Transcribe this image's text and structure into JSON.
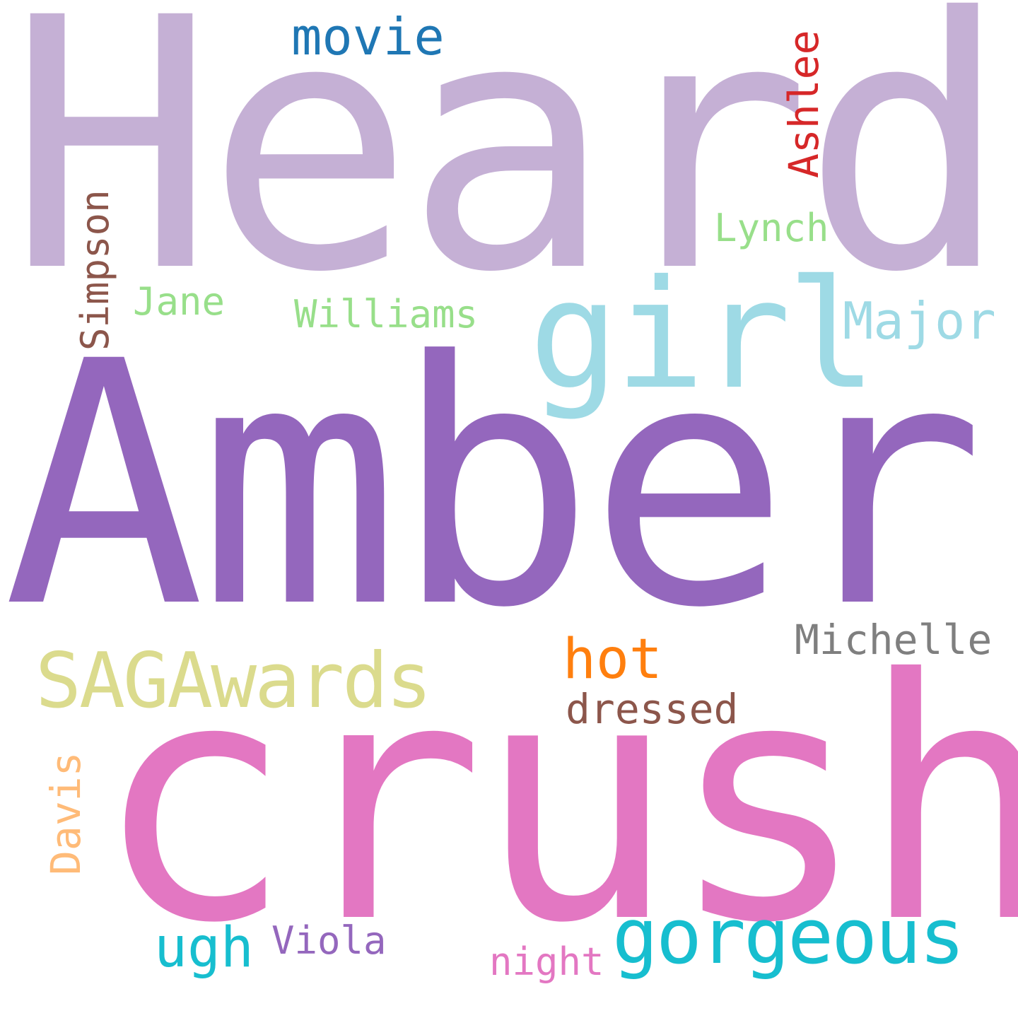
{
  "words": {
    "heard": {
      "text": "Heard",
      "color": "#c5b0d5"
    },
    "amber": {
      "text": "Amber",
      "color": "#9467bd"
    },
    "crush": {
      "text": "crush",
      "color": "#e377c2"
    },
    "girl": {
      "text": "girl",
      "color": "#9edae5"
    },
    "sagawards": {
      "text": "SAGAwards",
      "color": "#dbdb8d"
    },
    "gorgeous": {
      "text": "gorgeous",
      "color": "#17becf"
    },
    "movie": {
      "text": "movie",
      "color": "#1f77b4"
    },
    "hot": {
      "text": "hot",
      "color": "#ff7f0e"
    },
    "major": {
      "text": "Major",
      "color": "#9edae5"
    },
    "ugh": {
      "text": "ugh",
      "color": "#17becf"
    },
    "michelle": {
      "text": "Michelle",
      "color": "#7f7f7f"
    },
    "dressed": {
      "text": "dressed",
      "color": "#8c564b"
    },
    "lynch": {
      "text": "Lynch",
      "color": "#98df8a"
    },
    "williams": {
      "text": "Williams",
      "color": "#98df8a"
    },
    "jane": {
      "text": "Jane",
      "color": "#98df8a"
    },
    "viola": {
      "text": "Viola",
      "color": "#9467bd"
    },
    "night": {
      "text": "night",
      "color": "#e377c2"
    },
    "simpson": {
      "text": "Simpson",
      "color": "#8c564b"
    },
    "ashlee": {
      "text": "Ashlee",
      "color": "#d62728"
    },
    "davis": {
      "text": "Davis",
      "color": "#ffbb78"
    }
  }
}
